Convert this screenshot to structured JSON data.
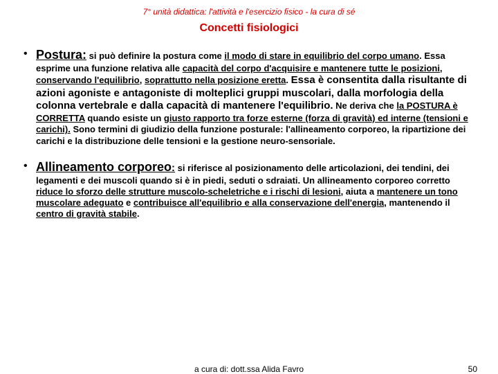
{
  "header": "7° unità didattica: l'attività e l'esercizio fisico  - la cura di sé",
  "title": "Concetti fisiologici",
  "items": [
    {
      "term": "Postura:",
      "p1_a": " si può definire la postura come ",
      "p1_b": "il modo di stare in equilibrio del corpo umano",
      "p1_c": ". Essa esprime una funzione relativa alle ",
      "p1_d": "capacità del corpo d'acquisire e mantenere tutte le posizioni, conservando l'equilibrio",
      "p1_e": ", ",
      "p1_f": "soprattutto nella posizione eretta",
      "p1_g": ". ",
      "p1_h": "Essa è consentita dalla risultante di azioni agoniste e antagoniste di molteplici gruppi muscolari, dalla morfologia della colonna vertebrale e dalla capacità di mantenere l'equilibrio.",
      "p2_a": " Ne deriva che ",
      "p2_b": "la POSTURA è CORRETTA",
      "p2_c": " quando esiste un ",
      "p2_d": "giusto rapporto tra forze esterne (forza di gravità) ed interne (tensioni e carichi).",
      "p2_e": " Sono termini di giudizio della funzione posturale: l'allineamento corporeo, la ripartizione dei carichi e la distribuzione delle tensioni e la gestione neuro-sensoriale."
    },
    {
      "term": "Allineamento corporeo",
      "term_tail": ":",
      "p1_a": " si riferisce al ",
      "p1_b": "posizionamento delle articolazioni, dei tendini, dei legamenti e dei muscoli quando si è in piedi, seduti o sdraiati.",
      "p1_c": " Un allineamento corporeo corretto ",
      "p1_d": "riduce lo sforzo delle strutture muscolo-scheletriche e i rischi di lesioni",
      "p1_e": ", aiuta a ",
      "p1_f": "mantenere un tono muscolare adeguato",
      "p1_g": " e ",
      "p1_h": "contribuisce all'equilibrio e alla conservazione dell'energia",
      "p1_i": ", mantenendo il ",
      "p1_j": "centro di gravità stabile",
      "p1_k": "."
    }
  ],
  "footer": {
    "center": "a cura di: dott.ssa Alida Favro",
    "page": "50"
  },
  "colors": {
    "accent": "#d40000",
    "text": "#000000",
    "bg": "#ffffff"
  }
}
